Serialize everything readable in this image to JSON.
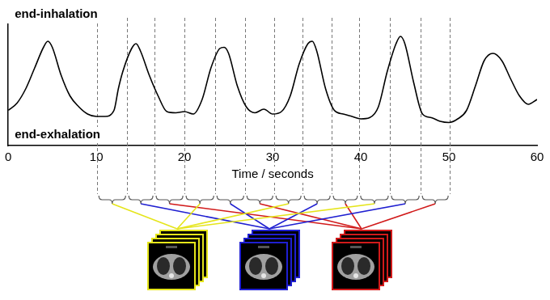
{
  "chart_data": {
    "type": "line",
    "annotations": [
      "end-inhalation",
      "end-exhalation"
    ],
    "xlabel": "Time / seconds",
    "x": [
      0,
      1,
      2,
      3,
      4,
      4.5,
      5,
      6,
      7,
      8,
      9,
      10,
      11,
      12,
      12.5,
      13,
      14,
      14.5,
      15,
      16,
      17,
      18,
      19,
      20,
      21,
      22,
      23,
      24,
      24.5,
      25,
      26,
      27,
      28,
      29,
      30,
      31,
      32,
      33,
      34,
      34.5,
      35,
      36,
      37,
      38,
      39,
      40,
      41,
      42,
      43,
      44,
      44.5,
      45,
      46,
      47,
      48,
      49,
      50,
      51,
      52,
      53,
      54,
      55,
      56,
      57,
      58,
      59,
      60
    ],
    "values": [
      0.29,
      0.35,
      0.47,
      0.64,
      0.81,
      0.86,
      0.81,
      0.58,
      0.41,
      0.32,
      0.26,
      0.24,
      0.24,
      0.29,
      0.47,
      0.61,
      0.8,
      0.84,
      0.78,
      0.58,
      0.41,
      0.28,
      0.27,
      0.28,
      0.26,
      0.38,
      0.64,
      0.8,
      0.81,
      0.76,
      0.49,
      0.32,
      0.27,
      0.3,
      0.26,
      0.28,
      0.41,
      0.67,
      0.84,
      0.86,
      0.78,
      0.47,
      0.29,
      0.26,
      0.24,
      0.22,
      0.23,
      0.32,
      0.61,
      0.84,
      0.9,
      0.84,
      0.52,
      0.26,
      0.23,
      0.2,
      0.19,
      0.22,
      0.29,
      0.49,
      0.7,
      0.76,
      0.7,
      0.55,
      0.41,
      0.34,
      0.38
    ],
    "color": "#000000",
    "xlim": [
      0,
      60
    ],
    "xticks": [
      0,
      10,
      20,
      30,
      40,
      50,
      60
    ],
    "ylim": [
      0,
      1
    ],
    "grid": false,
    "tick_labels": "x"
  },
  "phase_bins": {
    "boundaries": [
      10.1,
      13.5,
      16.6,
      20.0,
      23.5,
      26.9,
      30.2,
      33.4,
      36.7,
      39.8,
      43.3,
      46.8,
      50.1
    ],
    "colors": [
      "#e5e51a",
      "#1f1fd1",
      "#d11a1a",
      "#e5e51a",
      "#1f1fd1",
      "#d11a1a",
      "#e5e51a",
      "#1f1fd1",
      "#d11a1a",
      "#e5e51a",
      "#1f1fd1",
      "#d11a1a"
    ]
  },
  "image_stacks": [
    "#e5e51a",
    "#1f1fd1",
    "#d11a1a"
  ]
}
